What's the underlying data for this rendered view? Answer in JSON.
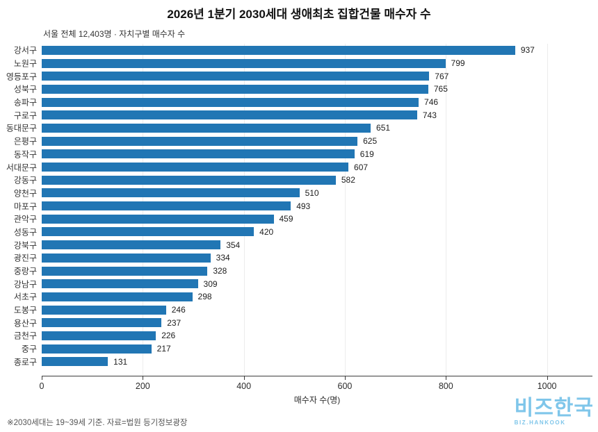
{
  "title": "2026년 1분기 2030세대 생애최초 집합건물 매수자 수",
  "subtitle": "서울 전체 12,403명 · 자치구별 매수자 수",
  "footnote": "※2030세대는 19~39세 기준. 자료=법원 등기정보광장",
  "logo": {
    "korean": "비즈한국",
    "english": "BIZ.HANKOOK",
    "color": "#7FC6EA"
  },
  "chart_data": {
    "type": "bar",
    "orientation": "horizontal",
    "title": "2026년 1분기 2030세대 생애최초 집합건물 매수자 수",
    "subtitle": "서울 전체 12,403명 · 자치구별 매수자 수",
    "categories": [
      "강서구",
      "노원구",
      "영등포구",
      "성북구",
      "송파구",
      "구로구",
      "동대문구",
      "은평구",
      "동작구",
      "서대문구",
      "강동구",
      "양천구",
      "마포구",
      "관악구",
      "성동구",
      "강북구",
      "광진구",
      "중랑구",
      "강남구",
      "서초구",
      "도봉구",
      "용산구",
      "금천구",
      "중구",
      "종로구"
    ],
    "values": [
      937,
      799,
      767,
      765,
      746,
      743,
      651,
      625,
      619,
      607,
      582,
      510,
      493,
      459,
      420,
      354,
      334,
      328,
      309,
      298,
      246,
      237,
      226,
      217,
      131
    ],
    "total": 12403,
    "xlabel": "매수자 수(명)",
    "ylabel": "",
    "x_ticks": [
      0,
      200,
      400,
      600,
      800,
      1000
    ],
    "xlim": [
      0,
      1090
    ],
    "bar_color": "#2176B4",
    "grid": "vertical-light",
    "value_labels": true,
    "legend": "none"
  }
}
